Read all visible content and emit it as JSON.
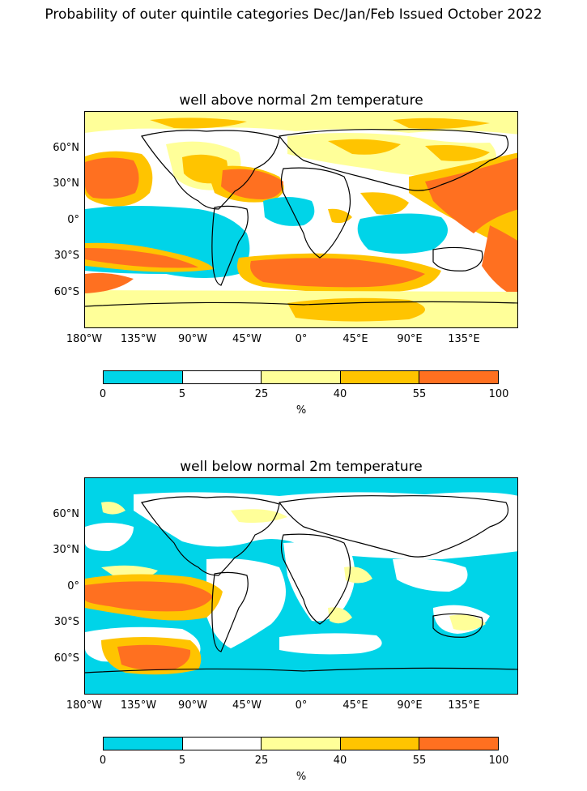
{
  "suptitle": "Probability of outer quintile categories Dec/Jan/Feb Issued October 2022",
  "colors": {
    "cat_0_5": "#00d4e8",
    "cat_5_25": "#ffffff",
    "cat_25_40": "#ffff99",
    "cat_40_55": "#ffc400",
    "cat_55_100": "#ff7020",
    "coast": "#000000"
  },
  "lat_labels": [
    "60°N",
    "30°N",
    "0°",
    "30°S",
    "60°S"
  ],
  "lon_labels": [
    "180°W",
    "135°W",
    "90°W",
    "45°W",
    "0°",
    "45°E",
    "90°E",
    "135°E"
  ],
  "colorbar": {
    "ticks": [
      "0",
      "5",
      "25",
      "40",
      "55",
      "100"
    ],
    "unit": "%"
  },
  "panels": [
    {
      "title": "well above normal 2m temperature"
    },
    {
      "title": "well below normal 2m temperature"
    }
  ]
}
